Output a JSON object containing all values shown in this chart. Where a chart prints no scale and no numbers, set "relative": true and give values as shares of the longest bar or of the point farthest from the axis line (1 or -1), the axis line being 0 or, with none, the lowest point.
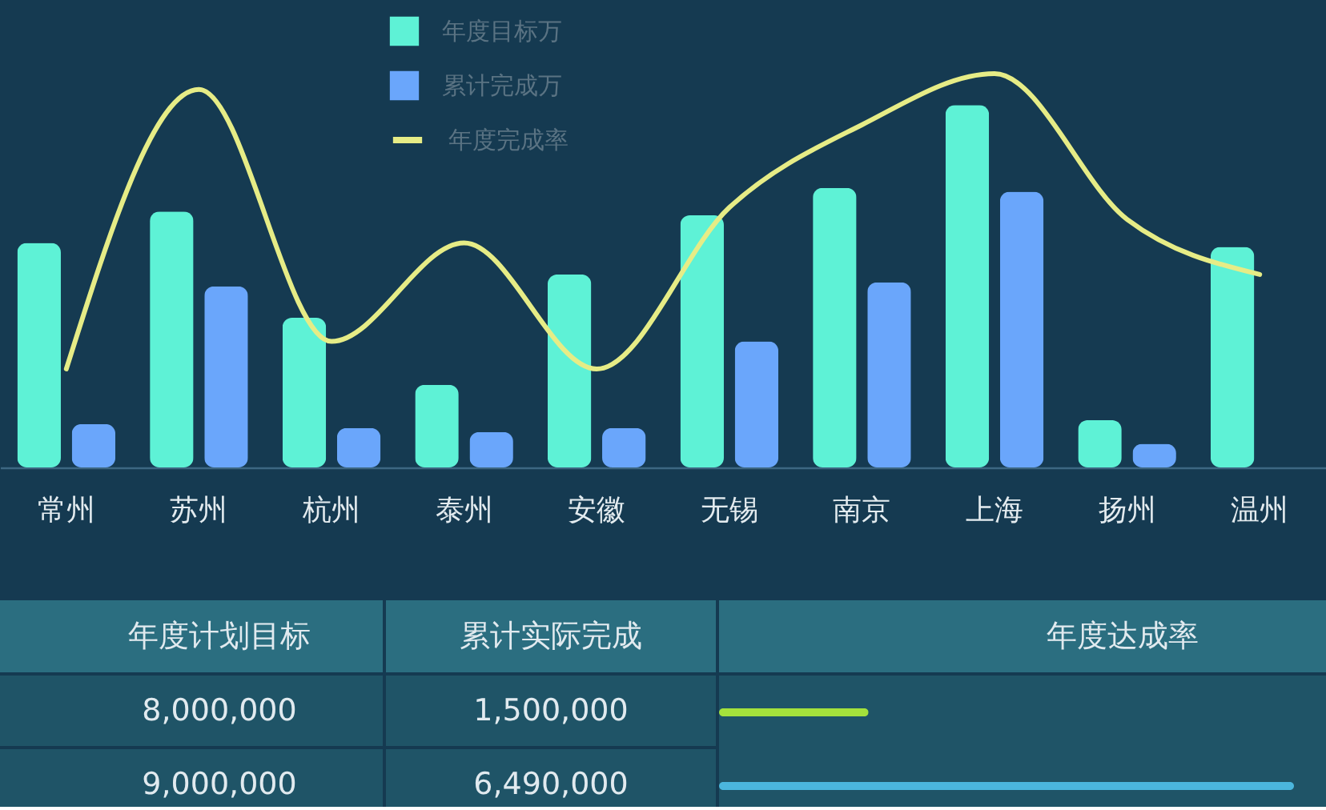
{
  "chart_data": [
    {
      "type": "bar",
      "relative": true,
      "categories": [
        "常州",
        "苏州",
        "杭州",
        "泰州",
        "安徽",
        "无锡",
        "南京",
        "上海",
        "扬州",
        "温州"
      ],
      "series": [
        {
          "name": "年度目标万",
          "type": "bar",
          "color": "#5ef2d6",
          "values": [
            0.57,
            0.65,
            0.38,
            0.21,
            0.49,
            0.64,
            0.71,
            0.92,
            0.12,
            0.56
          ]
        },
        {
          "name": "累计完成万",
          "type": "bar",
          "color": "#6aa6fb",
          "values": [
            0.11,
            0.46,
            0.1,
            0.09,
            0.1,
            0.32,
            0.47,
            0.7,
            0.06,
            null
          ]
        },
        {
          "name": "年度完成率",
          "type": "line",
          "color": "#e6ec86",
          "values": [
            0.25,
            0.96,
            0.32,
            0.57,
            0.25,
            0.66,
            0.87,
            1,
            0.63,
            0.49
          ]
        }
      ],
      "legend": "top"
    },
    {
      "type": "bar",
      "orientation": "horizontal",
      "relative": true,
      "categories": [
        null,
        null
      ],
      "values": [
        0.26,
        1
      ],
      "colors": [
        "#a4e23c",
        "#4bb6dd"
      ],
      "annotations": [
        "年度计划目标",
        "累计实际完成",
        "年度达成率",
        "8,000,000",
        "1,500,000",
        "9,000,000",
        "6,490,000"
      ]
    }
  ]
}
